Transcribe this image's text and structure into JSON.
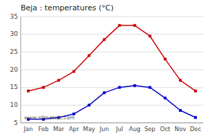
{
  "chart_data": {
    "type": "line",
    "title": "Beja : temperatures (°C)",
    "categories": [
      "Jan",
      "Feb",
      "Mar",
      "Apr",
      "May",
      "Jun",
      "Jul",
      "Aug",
      "Sep",
      "Oct",
      "Nov",
      "Dec"
    ],
    "series": [
      {
        "color": "#cc0000",
        "marker": "square",
        "values": [
          14,
          15,
          17,
          19.5,
          24,
          28.5,
          32.5,
          32.5,
          29.5,
          23,
          17,
          14
        ]
      },
      {
        "color": "#0000cc",
        "marker": "square",
        "values": [
          6,
          6,
          6.5,
          7.5,
          10,
          13.5,
          15,
          15.5,
          15,
          12,
          8.5,
          6.5
        ]
      }
    ],
    "ylim": [
      5,
      35
    ],
    "yticks": [
      5,
      10,
      15,
      20,
      25,
      30,
      35
    ],
    "grid": true,
    "annotation": "www.allmetsat.com"
  }
}
